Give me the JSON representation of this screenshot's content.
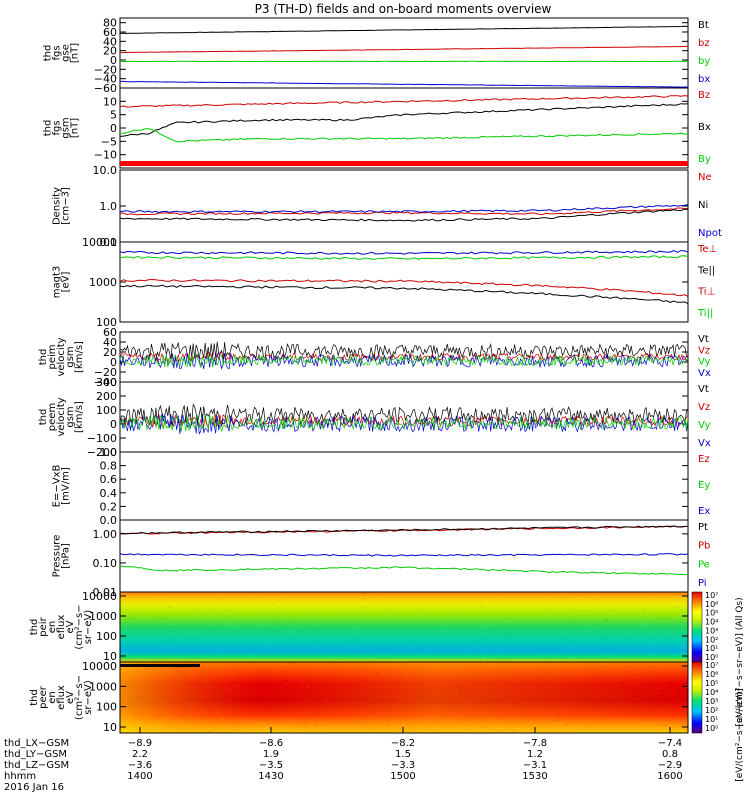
{
  "title": "P3 (TH-D) fields and on-board moments overview",
  "chart_data": [
    {
      "panel": "fgs_gse",
      "type": "line",
      "ylabel": [
        "thd",
        "fgs",
        "gse",
        "[nT]"
      ],
      "yticks": [
        "80",
        "60",
        "40",
        "20",
        "0",
        "−20",
        "−40",
        "−60"
      ],
      "ylim": [
        -60,
        90
      ],
      "legend": [
        "Bt",
        "bz",
        "by",
        "bx"
      ],
      "series": [
        {
          "name": "Bt",
          "color": "#000000",
          "x": [
            1400,
            1600
          ],
          "y": [
            57,
            72
          ]
        },
        {
          "name": "bz",
          "color": "#cc0000",
          "x": [
            1400,
            1600
          ],
          "y": [
            16,
            29
          ]
        },
        {
          "name": "by",
          "color": "#00cc00",
          "x": [
            1400,
            1600
          ],
          "y": [
            -3,
            -3
          ]
        },
        {
          "name": "bx",
          "color": "#0000cc",
          "x": [
            1400,
            1600
          ],
          "y": [
            -46,
            -58
          ]
        }
      ]
    },
    {
      "panel": "fgs_gsm",
      "type": "line",
      "ylabel": [
        "thd",
        "fgs",
        "gsm",
        "[nT]"
      ],
      "yticks": [
        "10",
        "5",
        "0",
        "−5",
        "−10"
      ],
      "ylim": [
        -15,
        15
      ],
      "legend": [
        "Bz",
        "Bx",
        "By"
      ],
      "series": [
        {
          "name": "Bz",
          "color": "#cc0000",
          "x": [
            1400,
            1450,
            1500,
            1550,
            1600
          ],
          "y": [
            8,
            9,
            10,
            11,
            12
          ]
        },
        {
          "name": "Bx",
          "color": "#000000",
          "x": [
            1400,
            1410,
            1420,
            1450,
            1480,
            1500,
            1550,
            1600
          ],
          "y": [
            -3,
            -2,
            2,
            3,
            3,
            5,
            7,
            9
          ]
        },
        {
          "name": "By",
          "color": "#00cc00",
          "x": [
            1400,
            1410,
            1420,
            1450,
            1500,
            1550,
            1600
          ],
          "y": [
            -2,
            0,
            -5,
            -4,
            -4,
            -3,
            -2
          ]
        }
      ]
    },
    {
      "panel": "density",
      "type": "line",
      "ylabel": [
        "Density",
        "[cm−3]"
      ],
      "yticks": [
        "10.0",
        "1.0",
        "0.1"
      ],
      "ylim": [
        0.1,
        10
      ],
      "log": true,
      "legend": [
        "Ne",
        "Ni",
        "Npot"
      ],
      "series": [
        {
          "name": "Ne",
          "color": "#cc0000",
          "x": [
            1400,
            1500,
            1550,
            1600
          ],
          "y": [
            0.6,
            0.65,
            0.6,
            0.85
          ]
        },
        {
          "name": "Ni",
          "color": "#000000",
          "x": [
            1400,
            1500,
            1550,
            1600
          ],
          "y": [
            0.45,
            0.4,
            0.45,
            0.8
          ]
        },
        {
          "name": "Npot",
          "color": "#0000cc",
          "x": [
            1400,
            1500,
            1550,
            1600
          ],
          "y": [
            0.7,
            0.7,
            0.75,
            1.05
          ]
        }
      ]
    },
    {
      "panel": "temperature",
      "type": "line",
      "ylabel": [
        "magt3",
        "[eV]"
      ],
      "yticks": [
        "10000",
        "1000",
        "100"
      ],
      "ylim": [
        100,
        10000
      ],
      "log": true,
      "legend": [
        "Te⊥",
        "Te||",
        "Ti⊥",
        "Ti||"
      ],
      "series": [
        {
          "name": "Te⊥",
          "color": "#0000cc",
          "x": [
            1400,
            1500,
            1600
          ],
          "y": [
            5500,
            5200,
            5800
          ]
        },
        {
          "name": "Ti||",
          "color": "#00cc00",
          "x": [
            1400,
            1500,
            1600
          ],
          "y": [
            4200,
            3800,
            4300
          ]
        },
        {
          "name": "Ti⊥",
          "color": "#cc0000",
          "x": [
            1400,
            1500,
            1550,
            1600
          ],
          "y": [
            1100,
            1050,
            800,
            450
          ]
        },
        {
          "name": "Te||",
          "color": "#000000",
          "x": [
            1400,
            1500,
            1550,
            1600
          ],
          "y": [
            800,
            700,
            500,
            300
          ]
        }
      ]
    },
    {
      "panel": "peim_velocity",
      "type": "line",
      "ylabel": [
        "thd",
        "peim",
        "velocity",
        "gsm",
        "[km/s]"
      ],
      "yticks": [
        "60",
        "40",
        "20",
        "0",
        "−20",
        "−40"
      ],
      "ylim": [
        -40,
        60
      ],
      "legend": [
        "Vt",
        "Vz",
        "Vy",
        "Vx"
      ],
      "series": [
        {
          "name": "Vt",
          "color": "#000000",
          "mean": 22,
          "noise": 14
        },
        {
          "name": "Vz",
          "color": "#cc0000",
          "mean": 10,
          "noise": 7
        },
        {
          "name": "Vx",
          "color": "#0000cc",
          "mean": 2,
          "noise": 12
        },
        {
          "name": "Vy",
          "color": "#00cc00",
          "mean": 3,
          "noise": 10
        }
      ]
    },
    {
      "panel": "peem_velocity",
      "type": "line",
      "ylabel": [
        "thd",
        "peem",
        "velocity",
        "gsm",
        "[km/s]"
      ],
      "yticks": [
        "300",
        "200",
        "100",
        "0",
        "−100",
        "−200"
      ],
      "ylim": [
        -200,
        300
      ],
      "legend": [
        "Vt",
        "Vz",
        "Vy",
        "Vx"
      ],
      "series": [
        {
          "name": "Vt",
          "color": "#000000",
          "mean": 65,
          "noise": 55
        },
        {
          "name": "Vz",
          "color": "#cc0000",
          "mean": 20,
          "noise": 35
        },
        {
          "name": "Vx",
          "color": "#0000cc",
          "mean": 0,
          "noise": 55
        },
        {
          "name": "Vy",
          "color": "#00cc00",
          "mean": 5,
          "noise": 45
        }
      ]
    },
    {
      "panel": "efield",
      "type": "line",
      "ylabel": [
        "E=−VxB",
        "[mV/m]"
      ],
      "yticks": [
        "1.0",
        "0.8",
        "0.6",
        "0.4",
        "0.2",
        "0.0"
      ],
      "ylim": [
        0,
        1
      ],
      "legend": [
        "Ez",
        "Ey",
        "Ex"
      ],
      "series": []
    },
    {
      "panel": "pressure",
      "type": "line",
      "ylabel": [
        "Pressure",
        "[nPa]"
      ],
      "yticks": [
        "1.00",
        "0.10",
        "0.01"
      ],
      "ylim": [
        0.01,
        3
      ],
      "log": true,
      "legend": [
        "Pt",
        "Pb",
        "Pe",
        "Pi"
      ],
      "series": [
        {
          "name": "Pb",
          "color": "#cc0000",
          "x": [
            1400,
            1500,
            1600
          ],
          "y": [
            1.0,
            1.3,
            1.8
          ]
        },
        {
          "name": "Pt",
          "color": "#000000",
          "x": [
            1400,
            1500,
            1600
          ],
          "y": [
            1.05,
            1.35,
            1.85
          ]
        },
        {
          "name": "Pe",
          "color": "#0000cc",
          "x": [
            1400,
            1500,
            1600
          ],
          "y": [
            0.2,
            0.18,
            0.2
          ]
        },
        {
          "name": "Pi",
          "color": "#00cc00",
          "x": [
            1400,
            1415,
            1500,
            1550,
            1600
          ],
          "y": [
            0.08,
            0.055,
            0.07,
            0.05,
            0.04
          ]
        }
      ]
    },
    {
      "panel": "peir_spectrogram",
      "type": "heatmap",
      "ylabel": [
        "thd",
        "peir",
        "en",
        "eflux",
        "eV",
        "(cm²−s−",
        "sr−eV)"
      ],
      "yticks": [
        "10000",
        "1000",
        "100",
        "10"
      ]
    },
    {
      "panel": "peer_spectrogram",
      "type": "heatmap",
      "ylabel": [
        "thd",
        "peer",
        "en",
        "eflux",
        "eV",
        "(cm²−s−",
        "sr−eV)"
      ],
      "yticks": [
        "10000",
        "1000",
        "100",
        "10"
      ]
    }
  ],
  "colorbar": {
    "ticks": [
      "10⁷",
      "10⁶",
      "10⁵",
      "10⁴",
      "10³",
      "10²",
      "10¹",
      "10⁰"
    ],
    "label": "[eV/(cm²−s−sr−eV)] (All Qs)",
    "label_lower": "[eV/(cm²−s−sr−eV)]"
  },
  "xaxis": {
    "rows": [
      {
        "name": "thd_LX−GSM",
        "values": [
          "−8.9",
          "−8.6",
          "−8.2",
          "−7.8",
          "−7.4"
        ]
      },
      {
        "name": "thd_LY−GSM",
        "values": [
          "2.2",
          "1.9",
          "1.5",
          "1.2",
          "0.8"
        ]
      },
      {
        "name": "thd_LZ−GSM",
        "values": [
          "−3.6",
          "−3.5",
          "−3.3",
          "−3.1",
          "−2.9"
        ]
      },
      {
        "name": "hhmm",
        "values": [
          "1400",
          "1430",
          "1500",
          "1530",
          "1600"
        ]
      }
    ],
    "date": "2016 Jan 16"
  }
}
